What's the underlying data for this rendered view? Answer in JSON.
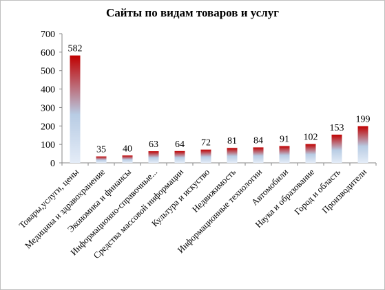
{
  "chart_data": {
    "type": "bar",
    "title": "Сайты по видам товаров и услуг",
    "xlabel": "",
    "ylabel": "",
    "ylim": [
      0,
      700
    ],
    "yticks": [
      0,
      100,
      200,
      300,
      400,
      500,
      600,
      700
    ],
    "grid": false,
    "legend": "none",
    "categories": [
      "Товары,услуги,  цены",
      "Медицина и здравохранение",
      "Экономика и финансы",
      "Информационно-справочные...",
      "Средства массовой информации",
      "Культура и искуство",
      "Недвижимость",
      "Информационные технологии",
      "Автомобили",
      "Наука и образование",
      "Город и область",
      "Производители"
    ],
    "values": [
      582,
      35,
      40,
      63,
      64,
      72,
      81,
      84,
      91,
      102,
      153,
      199
    ],
    "colors": {
      "bar_top": "#c00000",
      "bar_mid": "#b8cce4",
      "bar_bottom": "#e4ecf7",
      "axis": "#868686"
    }
  }
}
